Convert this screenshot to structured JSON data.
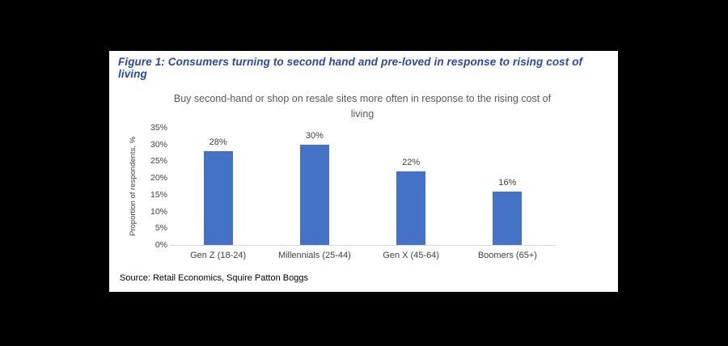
{
  "figure": {
    "title": "Figure 1: Consumers turning to second hand and pre-loved in response to rising cost of living",
    "source": "Source: Retail Economics, Squire Patton Boggs"
  },
  "chart_data": {
    "type": "bar",
    "title": "Buy second-hand or shop on resale sites more often in response to the rising cost of living",
    "xlabel": "",
    "ylabel": "Proportion of respondents, %",
    "categories": [
      "Gen Z (18-24)",
      "Millennials (25-44)",
      "Gen X (45-64)",
      "Boomers (65+)"
    ],
    "values": [
      28,
      30,
      22,
      16
    ],
    "data_labels": [
      "28%",
      "30%",
      "22%",
      "16%"
    ],
    "ylim": [
      0,
      35
    ],
    "ytick_step": 5,
    "ytick_labels": [
      "0%",
      "5%",
      "10%",
      "15%",
      "20%",
      "25%",
      "30%",
      "35%"
    ],
    "grid": false,
    "legend": "none",
    "bar_color": "#4472c4"
  },
  "colors": {
    "page_background": "#000000",
    "panel_background": "#ffffff",
    "figure_title_blue": "#2a4aa0",
    "chart_title_gray": "#595959",
    "axis_text_gray": "#404040",
    "axis_line_gray": "#d9d9d9",
    "bar_blue": "#4472c4"
  }
}
